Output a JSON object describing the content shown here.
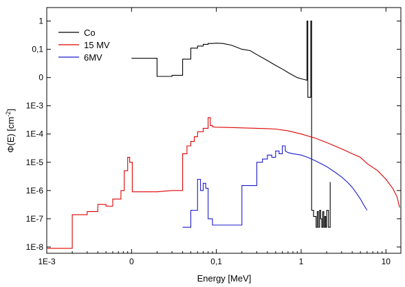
{
  "chart_data": {
    "type": "line",
    "xlabel": "Energy [MeV]",
    "ylabel_main": "Φ(E) [cm",
    "ylabel_sup": "-2",
    "ylabel_close": "]",
    "x_scale": "log",
    "y_scale": "log",
    "xlim": [
      0.001,
      15
    ],
    "ylim": [
      6e-09,
      3
    ],
    "grid": false,
    "legend_position": "top-left",
    "x_ticks": [
      {
        "value": 0.001,
        "label": "1E-3"
      },
      {
        "value": 0.01,
        "label": "0"
      },
      {
        "value": 0.1,
        "label": "0,1"
      },
      {
        "value": 1,
        "label": "1"
      },
      {
        "value": 10,
        "label": "10"
      }
    ],
    "y_ticks": [
      {
        "value": 1e-08,
        "label": "1E-8"
      },
      {
        "value": 1e-07,
        "label": "1E-7"
      },
      {
        "value": 1e-06,
        "label": "1E-6"
      },
      {
        "value": 1e-05,
        "label": "1E-5"
      },
      {
        "value": 0.0001,
        "label": "1E-4"
      },
      {
        "value": 0.001,
        "label": "1E-3"
      },
      {
        "value": 0.01,
        "label": "0"
      },
      {
        "value": 0.1,
        "label": "0,1"
      },
      {
        "value": 1,
        "label": "1"
      }
    ],
    "series": [
      {
        "name": "Co",
        "color": "#000000",
        "x": [
          0.01,
          0.02,
          0.02,
          0.03,
          0.03,
          0.04,
          0.04,
          0.05,
          0.05,
          0.06,
          0.06,
          0.07,
          0.07,
          0.08,
          0.08,
          0.09,
          0.1,
          0.12,
          0.15,
          0.2,
          0.25,
          0.3,
          0.4,
          0.5,
          0.6,
          0.7,
          0.8,
          0.9,
          1.0,
          1.1,
          1.17,
          1.17,
          1.2,
          1.2,
          1.3,
          1.3,
          1.33,
          1.33,
          1.4,
          1.4,
          1.5,
          1.5,
          1.55,
          1.55,
          1.6,
          1.6,
          1.65,
          1.65,
          1.7,
          1.7,
          1.75,
          1.75,
          1.8,
          1.8,
          1.85,
          1.85,
          1.9,
          1.9,
          1.95,
          1.95,
          2.0,
          2.0,
          2.1,
          2.1,
          2.2,
          2.2
        ],
        "y": [
          0.048,
          0.048,
          0.011,
          0.011,
          0.012,
          0.012,
          0.045,
          0.045,
          0.11,
          0.11,
          0.13,
          0.13,
          0.15,
          0.15,
          0.16,
          0.16,
          0.165,
          0.16,
          0.14,
          0.1,
          0.09,
          0.065,
          0.04,
          0.027,
          0.02,
          0.015,
          0.012,
          0.01,
          0.009,
          0.0085,
          0.008,
          1.0,
          1.0,
          0.002,
          0.002,
          1.0,
          1.0,
          2e-07,
          2e-07,
          1.2e-07,
          1.2e-07,
          5e-08,
          5e-08,
          1.8e-07,
          1.8e-07,
          5e-08,
          5e-08,
          2e-07,
          2e-07,
          1e-07,
          1e-07,
          5e-08,
          5e-08,
          1.8e-07,
          1.8e-07,
          5e-08,
          5e-08,
          1.2e-07,
          1.2e-07,
          5e-08,
          5e-08,
          2e-07,
          2e-07,
          5e-08,
          5e-08,
          2e-06
        ]
      },
      {
        "name": "15 MV",
        "color": "#dd0000",
        "x": [
          0.001,
          0.002,
          0.002,
          0.003,
          0.003,
          0.004,
          0.004,
          0.005,
          0.005,
          0.006,
          0.006,
          0.0075,
          0.0075,
          0.0082,
          0.0082,
          0.009,
          0.009,
          0.0095,
          0.0095,
          0.0102,
          0.0102,
          0.02,
          0.03,
          0.04,
          0.04,
          0.045,
          0.045,
          0.05,
          0.05,
          0.055,
          0.055,
          0.06,
          0.06,
          0.07,
          0.07,
          0.08,
          0.08,
          0.085,
          0.085,
          0.09,
          0.09,
          0.1,
          0.15,
          0.2,
          0.3,
          0.4,
          0.5,
          0.7,
          1.0,
          1.5,
          2.0,
          3.0,
          4.0,
          5.0,
          6.0,
          8.0,
          10.0,
          12.0,
          13.5,
          14.5
        ],
        "y": [
          9e-09,
          9e-09,
          1.4e-07,
          1.4e-07,
          1.8e-07,
          1.8e-07,
          3.2e-07,
          3.2e-07,
          2.8e-07,
          2.8e-07,
          5e-07,
          5e-07,
          1e-06,
          1e-06,
          5e-06,
          5e-06,
          1.5e-05,
          1.5e-05,
          1e-05,
          1e-05,
          9e-07,
          9e-07,
          1e-06,
          1e-06,
          2e-05,
          2e-05,
          3.8e-05,
          3.8e-05,
          5.5e-05,
          5.5e-05,
          8e-05,
          8e-05,
          0.00012,
          0.00012,
          0.00016,
          0.00016,
          0.00038,
          0.00038,
          0.0002,
          0.0002,
          0.00018,
          0.000175,
          0.00017,
          0.000165,
          0.00016,
          0.000155,
          0.00015,
          0.00013,
          0.0001,
          7e-05,
          5e-05,
          3e-05,
          2e-05,
          1.5e-05,
          9e-06,
          5e-06,
          2.5e-06,
          1.2e-06,
          6e-07,
          2.5e-07
        ]
      },
      {
        "name": "6MV",
        "color": "#1a1acc",
        "x": [
          0.04,
          0.05,
          0.05,
          0.06,
          0.06,
          0.065,
          0.065,
          0.07,
          0.07,
          0.075,
          0.075,
          0.08,
          0.08,
          0.09,
          0.09,
          0.1,
          0.2,
          0.2,
          0.3,
          0.3,
          0.35,
          0.35,
          0.4,
          0.4,
          0.45,
          0.45,
          0.5,
          0.5,
          0.55,
          0.55,
          0.6,
          0.6,
          0.65,
          0.65,
          0.7,
          0.8,
          0.9,
          1.0,
          1.2,
          1.5,
          2.0,
          2.5,
          3.0,
          3.5,
          4.0,
          4.5,
          5.0,
          5.5,
          6.0
        ],
        "y": [
          5e-08,
          5e-08,
          2e-07,
          2e-07,
          2.5e-06,
          2.5e-06,
          1e-06,
          1e-06,
          1.8e-06,
          1.8e-06,
          1.2e-06,
          1.2e-06,
          1e-07,
          1e-07,
          6e-08,
          6e-08,
          6e-08,
          1.5e-06,
          1.5e-06,
          1e-05,
          1e-05,
          1.3e-05,
          1.3e-05,
          1.8e-05,
          1.8e-05,
          1.5e-05,
          1.5e-05,
          2.5e-05,
          2.5e-05,
          2e-05,
          2e-05,
          3.8e-05,
          3.8e-05,
          2.5e-05,
          2.2e-05,
          2e-05,
          1.9e-05,
          1.8e-05,
          1.5e-05,
          1.1e-05,
          7e-06,
          4.5e-06,
          3e-06,
          2e-06,
          1.3e-06,
          8e-07,
          5e-07,
          3e-07,
          2e-07
        ]
      }
    ]
  }
}
